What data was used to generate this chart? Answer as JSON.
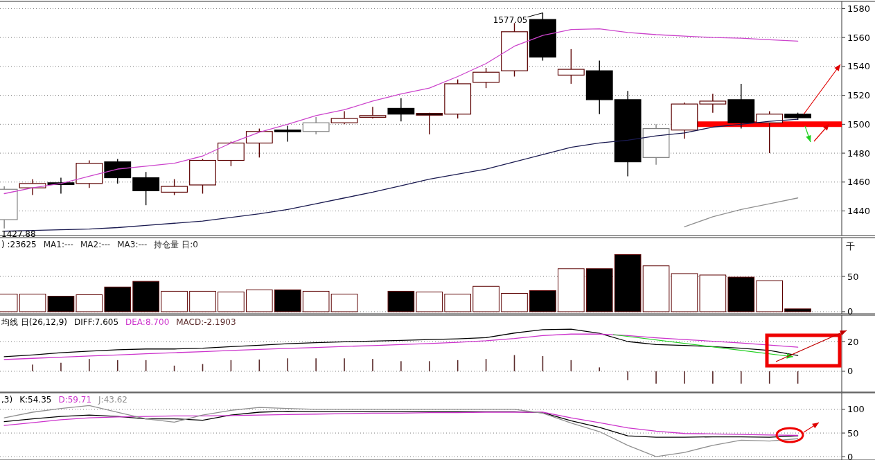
{
  "chart_data": [
    {
      "type": "candlestick",
      "categories": [
        null,
        null,
        null,
        null,
        null,
        null,
        null,
        null,
        null,
        null,
        null,
        null,
        null,
        null,
        null,
        null,
        null,
        null,
        null,
        null,
        null,
        null,
        null,
        null,
        null,
        null,
        null,
        null,
        null
      ],
      "ohlc": [
        [
          1434,
          1457,
          1427.88,
          1455
        ],
        [
          1456,
          1462,
          1451,
          1459
        ],
        [
          1459.5,
          1463,
          1452,
          1459
        ],
        [
          1459,
          1475,
          1456,
          1473
        ],
        [
          1474,
          1476,
          1459,
          1463
        ],
        [
          1463,
          1467,
          1444,
          1454
        ],
        [
          1453,
          1462,
          1451,
          1457
        ],
        [
          1458,
          1476,
          1452,
          1475
        ],
        [
          1475,
          1488,
          1471,
          1487
        ],
        [
          1487,
          1497,
          1477,
          1495
        ],
        [
          1496,
          1499,
          1488,
          1495
        ],
        [
          1495,
          1505,
          1493,
          1501
        ],
        [
          1501,
          1509,
          1500,
          1504
        ],
        [
          1505,
          1512,
          1504,
          1506
        ],
        [
          1511,
          1518,
          1502,
          1507
        ],
        [
          1507.5,
          1508,
          1493,
          1507
        ],
        [
          1507,
          1531,
          1504,
          1528
        ],
        [
          1529,
          1539,
          1525,
          1536
        ],
        [
          1537,
          1570,
          1533,
          1564
        ],
        [
          1572.5,
          1577.05,
          1544,
          1546.5
        ],
        [
          1534,
          1552,
          1528,
          1538
        ],
        [
          1537,
          1544,
          1507,
          1517
        ],
        [
          1517,
          1523,
          1464,
          1474
        ],
        [
          1477,
          1500,
          1472,
          1497
        ],
        [
          1496,
          1515,
          1490,
          1514
        ],
        [
          1514,
          1521,
          1508,
          1516
        ],
        [
          1517,
          1528,
          1497,
          1501
        ],
        [
          1501,
          1509,
          1480,
          1507
        ],
        [
          1507,
          1508,
          1503,
          1504.5
        ]
      ],
      "colors": [
        "#808080",
        "#5c0000",
        "#000000",
        "#5c0000",
        "#000000",
        "#000000",
        "#5c0000",
        "#5c0000",
        "#5c0000",
        "#5c0000",
        "#000000",
        "#808080",
        "#5c0000",
        "#5c0000",
        "#000000",
        "#5c0000",
        "#5c0000",
        "#5c0000",
        "#5c0000",
        "#000000",
        "#5c0000",
        "#000000",
        "#000000",
        "#808080",
        "#5c0000",
        "#5c0000",
        "#000000",
        "#5c0000",
        "#000000"
      ],
      "series": [
        {
          "type": "line",
          "color": "#cc44cc",
          "values": [
            1452,
            1456,
            1459,
            1464,
            1469,
            1471,
            1473,
            1478,
            1487,
            1494.5,
            1500,
            1506,
            1510,
            1516,
            1521,
            1525,
            1533,
            1542,
            1554,
            1561.5,
            1565.5,
            1566,
            1563.5,
            1562,
            1561,
            1560,
            1559.5,
            1558.5,
            1557.5
          ]
        },
        {
          "type": "line",
          "color": "#1a1a50",
          "values": [
            1426,
            1426.5,
            1427,
            1427.5,
            1428.5,
            1430,
            1431.5,
            1433,
            1435.5,
            1438,
            1441,
            1445,
            1449,
            1453,
            1457.5,
            1462,
            1465.5,
            1469,
            1474,
            1479,
            1484,
            1487,
            1489,
            1492,
            1494,
            1498,
            1500,
            1502,
            1503.5
          ]
        },
        {
          "type": "line",
          "color": "#909090",
          "values": [
            null,
            null,
            null,
            null,
            null,
            null,
            null,
            null,
            null,
            null,
            null,
            null,
            null,
            null,
            null,
            null,
            null,
            null,
            null,
            null,
            null,
            null,
            null,
            null,
            1429,
            1436,
            1441,
            1445,
            1449
          ]
        }
      ],
      "ylim": [
        1423,
        1585
      ],
      "yticks": [
        1440,
        1460,
        1480,
        1500,
        1520,
        1540,
        1560,
        1580
      ],
      "grid": "y",
      "tick_labels": "y",
      "annotations": [
        "1577.05",
        "1427.88"
      ],
      "ref_lines": [
        {
          "axis": "y",
          "value": 1500,
          "color": "#ff0000"
        }
      ]
    },
    {
      "type": "bar",
      "title": ") :23625",
      "categories": [
        null,
        null,
        null,
        null,
        null,
        null,
        null,
        null,
        null,
        null,
        null,
        null,
        null,
        null,
        null,
        null,
        null,
        null,
        null,
        null,
        null,
        null,
        null,
        null,
        null,
        null,
        null,
        null,
        null
      ],
      "values": [
        25,
        25,
        22,
        24,
        35,
        43,
        29,
        29,
        28,
        31,
        31,
        29,
        25,
        null,
        29,
        28,
        25,
        36,
        26,
        30,
        61,
        61,
        81,
        65,
        54,
        52,
        49,
        44,
        4
      ],
      "colors": [
        "#ffffff",
        "#ffffff",
        "#000000",
        "#ffffff",
        "#000000",
        "#000000",
        "#ffffff",
        "#ffffff",
        "#ffffff",
        "#ffffff",
        "#000000",
        "#ffffff",
        "#ffffff",
        null,
        "#000000",
        "#ffffff",
        "#ffffff",
        "#ffffff",
        "#ffffff",
        "#000000",
        "#ffffff",
        "#000000",
        "#000000",
        "#ffffff",
        "#ffffff",
        "#ffffff",
        "#000000",
        "#ffffff",
        "#000000"
      ],
      "annotations": [
        "MA1:---",
        "MA2:---",
        "MA3:---",
        "持仓量 日:0"
      ],
      "ylabel": "千",
      "ylim": [
        -3,
        105
      ],
      "yticks": [
        0,
        50
      ],
      "grid": "y",
      "tick_labels": "y"
    },
    {
      "type": "bar",
      "title": "均线 日(26,12,9)",
      "categories": [
        null,
        null,
        null,
        null,
        null,
        null,
        null,
        null,
        null,
        null,
        null,
        null,
        null,
        null,
        null,
        null,
        null,
        null,
        null,
        null,
        null,
        null,
        null,
        null,
        null,
        null,
        null,
        null,
        null
      ],
      "series": [
        {
          "name": "DIFF:7.605",
          "type": "line",
          "color": "#000000",
          "values": [
            9.8,
            11,
            12.5,
            13.5,
            14.5,
            15,
            15,
            15.5,
            16.6,
            17.5,
            18.5,
            19.2,
            19.8,
            20.3,
            20.8,
            21.3,
            21.8,
            22.6,
            25.7,
            28,
            28.3,
            25.5,
            20,
            18,
            17.4,
            16.6,
            15.5,
            14,
            10.6
          ]
        },
        {
          "name": "DEA:8.700",
          "type": "line",
          "color": "#cc33cc",
          "values": [
            7.9,
            8.7,
            9.5,
            10.3,
            11,
            11.8,
            12.5,
            13.2,
            14,
            14.7,
            15.4,
            16,
            16.7,
            17.3,
            18,
            18.7,
            19.5,
            20.5,
            22,
            24,
            25,
            25,
            24,
            22.5,
            21.3,
            20.2,
            19,
            17.6,
            16.2
          ]
        },
        {
          "name": "MACD:-2.1903",
          "type": "bar",
          "color": "#5a2a2a",
          "values": [
            null,
            4.5,
            5.7,
            8.3,
            7.5,
            7.5,
            3.8,
            4.9,
            7.5,
            7.9,
            8.7,
            8.7,
            8.7,
            8.3,
            6.8,
            6.8,
            7.5,
            8.3,
            10.9,
            10.2,
            7.5,
            2.6,
            -6,
            -8.3,
            -8.3,
            -8.3,
            -8.3,
            -8.3,
            -8.3
          ]
        }
      ],
      "legend": "top left",
      "ylim": [
        -14,
        37.7
      ],
      "yticks": [
        0,
        20
      ],
      "grid": "y",
      "tick_labels": "y"
    },
    {
      "type": "line",
      "title": ",3)",
      "categories": [
        null,
        null,
        null,
        null,
        null,
        null,
        null,
        null,
        null,
        null,
        null,
        null,
        null,
        null,
        null,
        null,
        null,
        null,
        null,
        null,
        null,
        null,
        null,
        null,
        null,
        null,
        null,
        null,
        null
      ],
      "series": [
        {
          "name": "K:54.35",
          "color": "#000000",
          "values": [
            74,
            80,
            85,
            88,
            85,
            80,
            80,
            77,
            88,
            94,
            96,
            95,
            95,
            95,
            95,
            95,
            95,
            95,
            95,
            93,
            76,
            62,
            44,
            41,
            41,
            42,
            42,
            41,
            44
          ]
        },
        {
          "name": "D:59.71",
          "color": "#cc33cc",
          "values": [
            66,
            72,
            78,
            82,
            84,
            85,
            86,
            86,
            87,
            88,
            89,
            90,
            91,
            92,
            92,
            93,
            93,
            94,
            94,
            94,
            82,
            72,
            61,
            54,
            49,
            48,
            47,
            46,
            45
          ]
        },
        {
          "name": "J:43.62",
          "color": "#909090",
          "values": [
            82,
            94,
            102,
            108,
            94,
            80,
            73,
            88,
            98,
            104,
            102,
            100,
            100,
            100,
            100,
            100,
            100,
            100,
            100,
            92,
            71,
            53,
            24,
            0,
            9,
            24,
            35,
            33,
            38
          ]
        }
      ],
      "legend": "top left",
      "ylim": [
        -7,
        135
      ],
      "yticks": [
        0,
        50,
        100
      ],
      "grid": "y",
      "tick_labels": "y"
    }
  ]
}
